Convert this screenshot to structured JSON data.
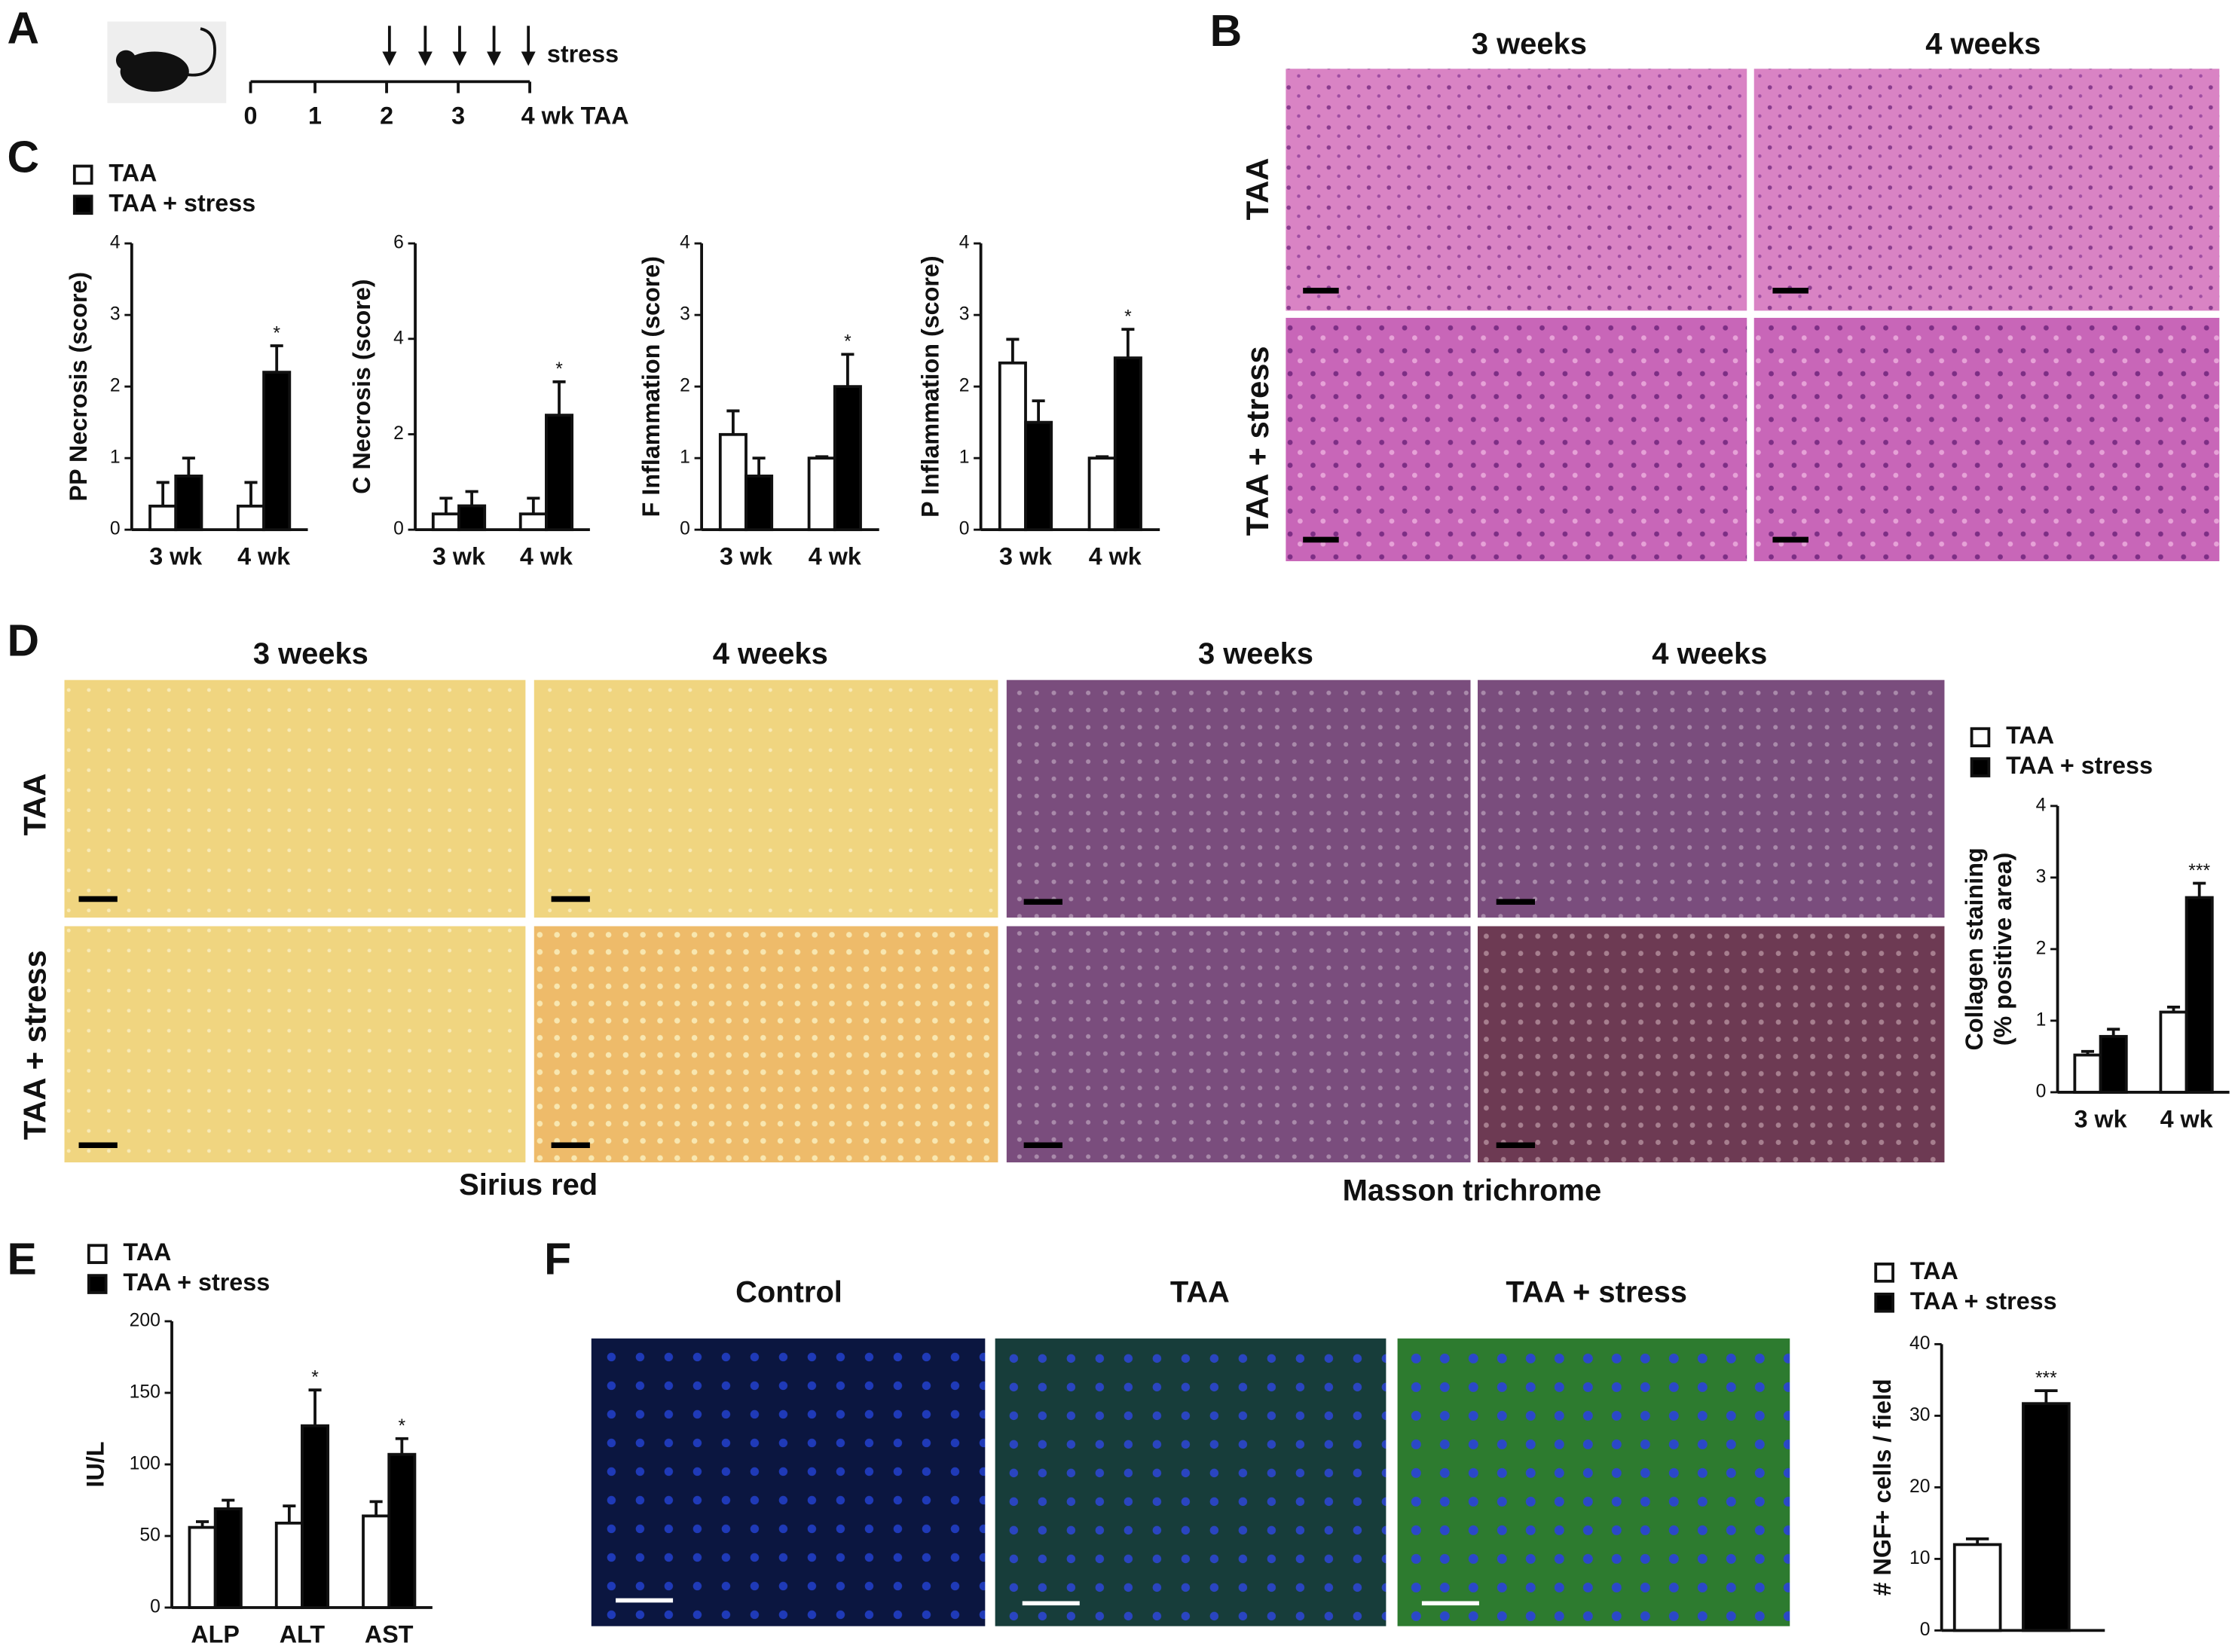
{
  "panel_labels": [
    "A",
    "B",
    "C",
    "D",
    "E",
    "F"
  ],
  "timeline": {
    "ticks": [
      "0",
      "1",
      "2",
      "3",
      "4 wk TAA"
    ],
    "arrow_label": "stress"
  },
  "panel_b": {
    "columns": [
      "3 weeks",
      "4 weeks"
    ],
    "rows": [
      "TAA",
      "TAA + stress"
    ]
  },
  "panel_d": {
    "columns": [
      "3 weeks",
      "4 weeks",
      "3 weeks",
      "4 weeks"
    ],
    "rows": [
      "TAA",
      "TAA + stress"
    ],
    "stains": [
      "Sirius red",
      "Masson trichrome"
    ]
  },
  "panel_f": {
    "columns": [
      "Control",
      "TAA",
      "TAA + stress"
    ]
  },
  "chart_data": [
    {
      "type": "bar",
      "ylabel": "PP Necrosis (score)",
      "categories": [
        "3 wk",
        "4 wk"
      ],
      "ylim": [
        0,
        4
      ],
      "yticks": [
        0,
        1,
        2,
        3,
        4
      ],
      "series": [
        {
          "name": "TAA",
          "color": "#ffffff",
          "values": [
            0.33,
            0.33
          ],
          "errors": [
            0.33,
            0.33
          ],
          "significance": [
            null,
            null
          ]
        },
        {
          "name": "TAA + stress",
          "color": "#000000",
          "values": [
            0.75,
            2.2
          ],
          "errors": [
            0.25,
            0.37
          ],
          "significance": [
            null,
            "*"
          ]
        }
      ]
    },
    {
      "type": "bar",
      "ylabel": "C Necrosis (score)",
      "categories": [
        "3 wk",
        "4 wk"
      ],
      "ylim": [
        0,
        6
      ],
      "yticks": [
        0,
        2,
        4,
        6
      ],
      "series": [
        {
          "color": "#ffffff",
          "values": [
            0.33,
            0.33
          ],
          "errors": [
            0.33,
            0.33
          ],
          "significance": [
            null,
            null
          ]
        },
        {
          "color": "#000000",
          "values": [
            0.5,
            2.4
          ],
          "errors": [
            0.3,
            0.7
          ],
          "significance": [
            null,
            "*"
          ]
        }
      ]
    },
    {
      "type": "bar",
      "ylabel": "F Inflammation (score)",
      "categories": [
        "3 wk",
        "4 wk"
      ],
      "ylim": [
        0,
        4
      ],
      "yticks": [
        0,
        1,
        2,
        3,
        4
      ],
      "series": [
        {
          "color": "#ffffff",
          "values": [
            1.33,
            1.0
          ],
          "errors": [
            0.33,
            0.02
          ],
          "significance": [
            null,
            null
          ]
        },
        {
          "color": "#000000",
          "values": [
            0.75,
            2.0
          ],
          "errors": [
            0.25,
            0.45
          ],
          "significance": [
            null,
            "*"
          ]
        }
      ]
    },
    {
      "type": "bar",
      "ylabel": "P Inflammation (score)",
      "categories": [
        "3 wk",
        "4 wk"
      ],
      "ylim": [
        0,
        4
      ],
      "yticks": [
        0,
        1,
        2,
        3,
        4
      ],
      "series": [
        {
          "color": "#ffffff",
          "values": [
            2.33,
            1.0
          ],
          "errors": [
            0.33,
            0.02
          ],
          "significance": [
            null,
            null
          ]
        },
        {
          "color": "#000000",
          "values": [
            1.5,
            2.4
          ],
          "errors": [
            0.3,
            0.4
          ],
          "significance": [
            null,
            "*"
          ]
        }
      ]
    },
    {
      "type": "bar",
      "ylabel": [
        "Collagen staining",
        "(% positive area)"
      ],
      "categories": [
        "3 wk",
        "4 wk"
      ],
      "ylim": [
        0,
        4
      ],
      "yticks": [
        0,
        1,
        2,
        3,
        4
      ],
      "series": [
        {
          "name": "TAA",
          "color": "#ffffff",
          "values": [
            0.52,
            1.12
          ],
          "errors": [
            0.05,
            0.07
          ],
          "significance": [
            null,
            null
          ]
        },
        {
          "name": "TAA + stress",
          "color": "#000000",
          "values": [
            0.78,
            2.72
          ],
          "errors": [
            0.1,
            0.2
          ],
          "significance": [
            null,
            "***"
          ]
        }
      ]
    },
    {
      "type": "bar",
      "ylabel": "IU/L",
      "categories": [
        "ALP",
        "ALT",
        "AST"
      ],
      "ylim": [
        0,
        200
      ],
      "yticks": [
        0,
        50,
        100,
        150,
        200
      ],
      "series": [
        {
          "name": "TAA",
          "color": "#ffffff",
          "values": [
            56,
            59,
            64
          ],
          "errors": [
            4,
            12,
            10
          ],
          "significance": [
            null,
            null,
            null
          ]
        },
        {
          "name": "TAA + stress",
          "color": "#000000",
          "values": [
            69,
            127,
            107
          ],
          "errors": [
            6,
            25,
            11
          ],
          "significance": [
            null,
            "*",
            "*"
          ]
        }
      ]
    },
    {
      "type": "bar",
      "ylabel": "# NGF+ cells / field",
      "categories": [
        null
      ],
      "ylim": [
        0,
        40
      ],
      "yticks": [
        0,
        10,
        20,
        30,
        40
      ],
      "series": [
        {
          "name": "TAA",
          "color": "#ffffff",
          "values": [
            12
          ],
          "errors": [
            0.8
          ],
          "significance": [
            null
          ]
        },
        {
          "name": "TAA + stress",
          "color": "#000000",
          "values": [
            31.7
          ],
          "errors": [
            1.8
          ],
          "significance": [
            "***"
          ]
        }
      ]
    }
  ]
}
